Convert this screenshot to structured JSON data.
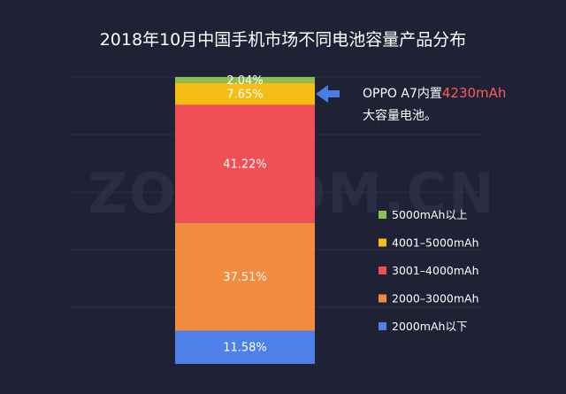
{
  "watermark": "ZOL.COM.CN",
  "chart_data": {
    "type": "bar",
    "stacked": true,
    "title": "2018年10月中国手机市场不同电池容量产品分布",
    "categories": [
      ""
    ],
    "series": [
      {
        "name": "2000mAh以下",
        "values": [
          11.58
        ],
        "label": "11.58%",
        "color": "#4f7fe8"
      },
      {
        "name": "2000–3000mAh",
        "values": [
          37.51
        ],
        "label": "37.51%",
        "color": "#f28c3f"
      },
      {
        "name": "3001–4000mAh",
        "values": [
          41.22
        ],
        "label": "41.22%",
        "color": "#f04f55"
      },
      {
        "name": "4001–5000mAh",
        "values": [
          7.65
        ],
        "label": "7.65%",
        "color": "#f6bd16"
      },
      {
        "name": "5000mAh以上",
        "values": [
          2.04
        ],
        "label": "2.04%",
        "color": "#8cc152"
      }
    ],
    "ylim": [
      0,
      100
    ],
    "grid": true,
    "legend_position": "right",
    "annotation": {
      "line1_prefix": "OPPO A7内置",
      "line1_highlight": "4230mAh",
      "line2": "大容量电池。",
      "arrow_color": "#4a7de6",
      "target_series": "4001–5000mAh"
    }
  }
}
